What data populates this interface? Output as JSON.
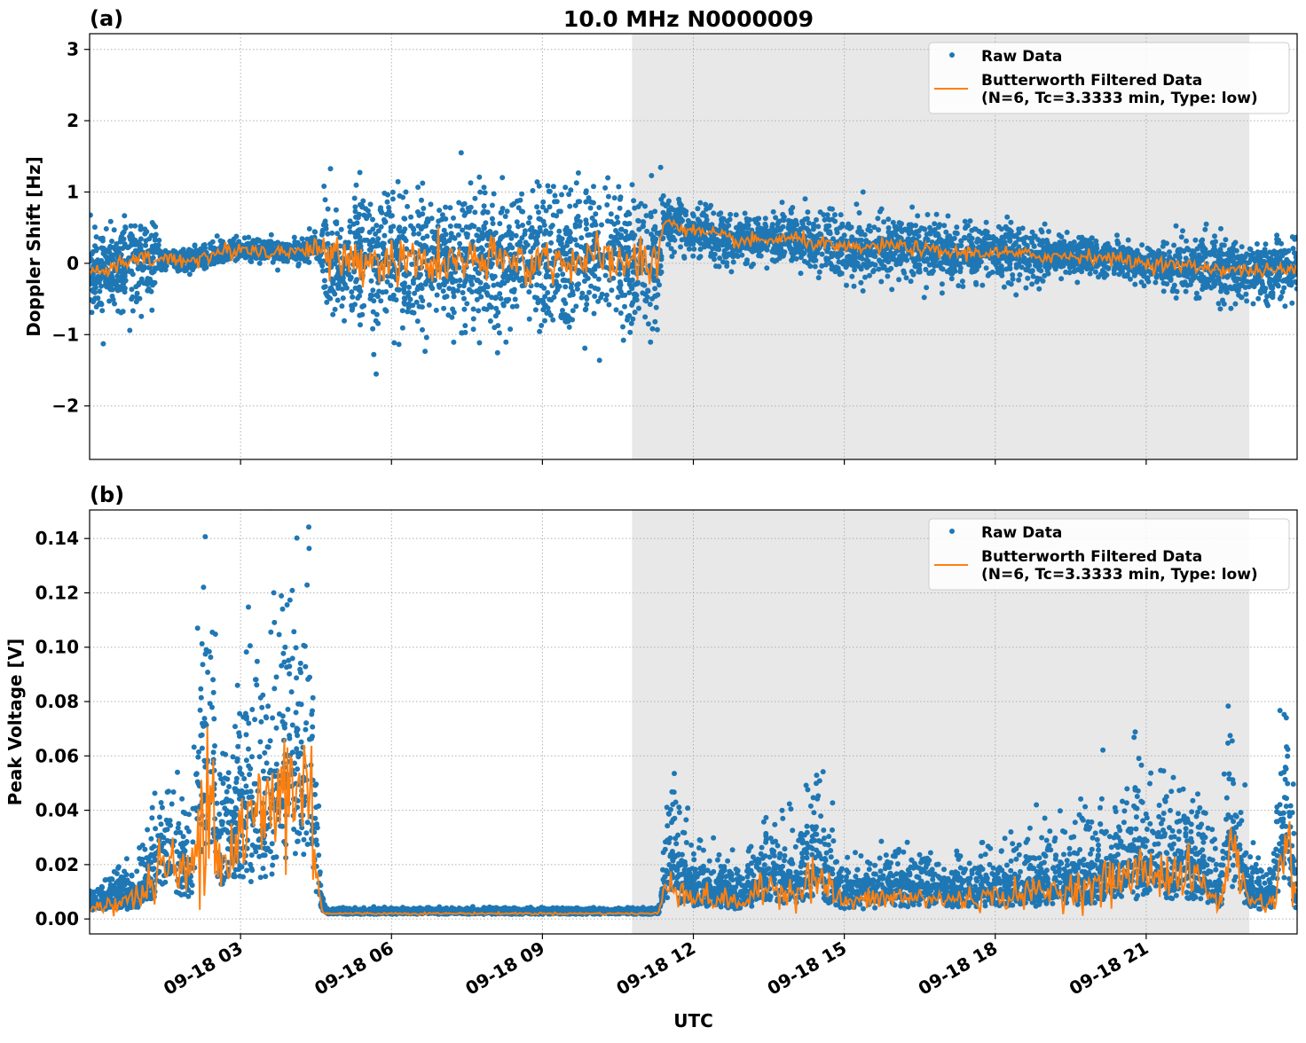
{
  "title": "10.0 MHz N0000009",
  "colors": {
    "raw": "#1f77b4",
    "filtered": "#ff7f0e",
    "shade": "#e8e8e8",
    "grid": "#b0b0b0"
  },
  "chart_data": [
    {
      "type": "scatter+line",
      "panel_label": "(a)",
      "ylabel": "Doppler Shift [Hz]",
      "xlabel": "",
      "xlim_hours": [
        0,
        24
      ],
      "ylim": [
        -2.75,
        3.22
      ],
      "yticks": [
        3,
        2,
        1,
        0,
        -1,
        -2
      ],
      "ytick_labels": [
        "3",
        "2",
        "1",
        "0",
        "−1",
        "−2"
      ],
      "shaded_hours": [
        10.78,
        23.05
      ],
      "grid": true,
      "legend": {
        "placement": "top-right",
        "entries": [
          "Raw Data",
          "Butterworth Filtered Data",
          "(N=6, Tc=3.3333 min, Type: low)"
        ]
      },
      "filtered_trend": [
        [
          0,
          -0.15
        ],
        [
          1,
          0.05
        ],
        [
          2,
          0.05
        ],
        [
          3,
          0.2
        ],
        [
          4,
          0.15
        ],
        [
          4.5,
          0.25
        ],
        [
          4.7,
          0.05
        ],
        [
          7,
          0.0
        ],
        [
          10,
          0.05
        ],
        [
          11.3,
          0.0
        ],
        [
          11.4,
          0.6
        ],
        [
          12,
          0.45
        ],
        [
          13,
          0.3
        ],
        [
          14,
          0.35
        ],
        [
          15,
          0.2
        ],
        [
          16,
          0.25
        ],
        [
          17,
          0.15
        ],
        [
          18,
          0.15
        ],
        [
          19,
          0.1
        ],
        [
          20,
          0.1
        ],
        [
          21,
          0.0
        ],
        [
          22,
          -0.05
        ],
        [
          23,
          -0.1
        ],
        [
          24,
          -0.1
        ]
      ],
      "raw_spread": [
        [
          0,
          0.55
        ],
        [
          1.3,
          0.5
        ],
        [
          1.4,
          0.15
        ],
        [
          4.6,
          0.15
        ],
        [
          4.65,
          0.85
        ],
        [
          11.35,
          0.85
        ],
        [
          11.4,
          0.3
        ],
        [
          14.6,
          0.3
        ],
        [
          14.7,
          0.38
        ],
        [
          19,
          0.35
        ],
        [
          19.1,
          0.22
        ],
        [
          21.5,
          0.22
        ],
        [
          21.6,
          0.38
        ],
        [
          24,
          0.4
        ]
      ],
      "filtered_noise": [
        [
          0,
          0.06
        ],
        [
          4.6,
          0.06
        ],
        [
          4.65,
          0.17
        ],
        [
          11.35,
          0.17
        ],
        [
          11.4,
          0.05
        ],
        [
          24,
          0.05
        ]
      ]
    },
    {
      "type": "scatter+line",
      "panel_label": "(b)",
      "ylabel": "Peak Voltage [V]",
      "xlabel": "UTC",
      "xlim_hours": [
        0,
        24
      ],
      "ylim": [
        -0.0055,
        0.1505
      ],
      "yticks": [
        0.14,
        0.12,
        0.1,
        0.08,
        0.06,
        0.04,
        0.02,
        0.0
      ],
      "ytick_labels": [
        "0.14",
        "0.12",
        "0.10",
        "0.08",
        "0.06",
        "0.04",
        "0.02",
        "0.00"
      ],
      "xticks_hours": [
        3,
        6,
        9,
        12,
        15,
        18,
        21
      ],
      "xtick_labels": [
        "09-18 03",
        "09-18 06",
        "09-18 09",
        "09-18 12",
        "09-18 15",
        "09-18 18",
        "09-18 21"
      ],
      "shaded_hours": [
        10.78,
        23.05
      ],
      "grid": true,
      "legend": {
        "placement": "top-right",
        "entries": [
          "Raw Data",
          "Butterworth Filtered Data",
          "(N=6, Tc=3.3333 min, Type: low)"
        ]
      },
      "filtered_trend": [
        [
          0,
          0.004
        ],
        [
          1,
          0.008
        ],
        [
          1.5,
          0.02
        ],
        [
          2,
          0.015
        ],
        [
          2.35,
          0.06
        ],
        [
          2.6,
          0.02
        ],
        [
          3,
          0.03
        ],
        [
          3.5,
          0.04
        ],
        [
          4,
          0.05
        ],
        [
          4.4,
          0.045
        ],
        [
          4.6,
          0.004
        ],
        [
          4.7,
          0.002
        ],
        [
          11.3,
          0.002
        ],
        [
          11.5,
          0.015
        ],
        [
          12,
          0.008
        ],
        [
          13,
          0.006
        ],
        [
          13.5,
          0.012
        ],
        [
          14,
          0.01
        ],
        [
          14.4,
          0.016
        ],
        [
          15,
          0.006
        ],
        [
          16,
          0.008
        ],
        [
          17,
          0.007
        ],
        [
          18,
          0.008
        ],
        [
          19,
          0.01
        ],
        [
          20,
          0.012
        ],
        [
          21,
          0.018
        ],
        [
          22,
          0.015
        ],
        [
          22.5,
          0.005
        ],
        [
          22.65,
          0.03
        ],
        [
          23,
          0.008
        ],
        [
          23.5,
          0.005
        ],
        [
          23.8,
          0.03
        ],
        [
          24,
          0.005
        ]
      ],
      "raw_spread": [
        [
          0,
          0.6
        ],
        [
          4.6,
          0.8
        ],
        [
          4.7,
          0.15
        ],
        [
          11.3,
          0.15
        ],
        [
          11.4,
          0.9
        ],
        [
          24,
          0.9
        ]
      ],
      "filtered_noise": [
        [
          0,
          0.35
        ],
        [
          4.6,
          0.35
        ],
        [
          4.7,
          0.1
        ],
        [
          11.3,
          0.1
        ],
        [
          11.4,
          0.3
        ],
        [
          24,
          0.3
        ]
      ]
    }
  ]
}
